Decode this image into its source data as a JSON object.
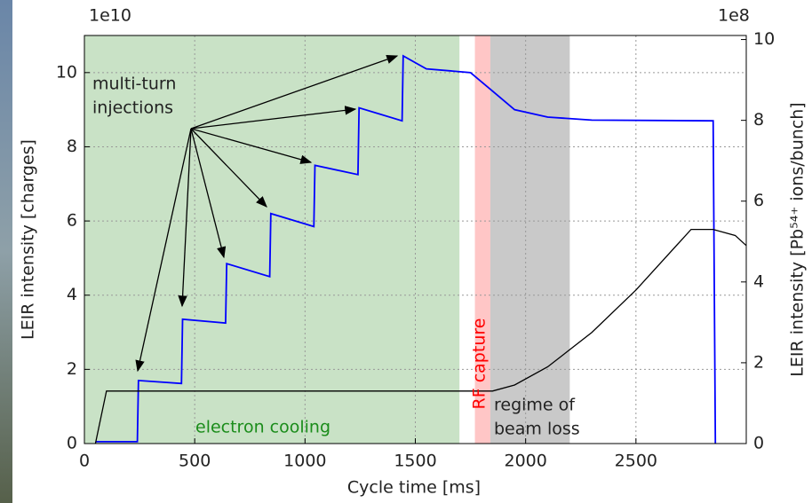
{
  "chart_data": {
    "type": "line",
    "x_label": "Cycle time [ms]",
    "y_label": "LEIR intensity [charges]",
    "y2_label": "LEIR intensity [Pb⁵⁴⁺ ions/bunch]",
    "y_offset": "1e10",
    "y2_offset": "1e8",
    "xlim": [
      0,
      3000
    ],
    "ylim": [
      0,
      11
    ],
    "y2lim": [
      0,
      10.1
    ],
    "xticks": [
      0,
      500,
      1000,
      1500,
      2000,
      2500
    ],
    "yticks": [
      0,
      2,
      4,
      6,
      8,
      10
    ],
    "y2ticks": [
      0,
      2,
      4,
      6,
      8,
      10
    ],
    "grid": true,
    "spans": [
      {
        "start": 0,
        "end": 1700,
        "color": "#c9e2c6"
      },
      {
        "start": 1770,
        "end": 1840,
        "color": "#ffc6c6"
      },
      {
        "start": 1840,
        "end": 2200,
        "color": "#c9c9c9"
      }
    ],
    "series": [
      {
        "color": "#0000ff",
        "x": [
          50,
          240,
          245,
          440,
          445,
          640,
          645,
          840,
          845,
          1040,
          1045,
          1240,
          1245,
          1440,
          1445,
          1550,
          1750,
          1850,
          1950,
          2100,
          2300,
          2850,
          2860
        ],
        "values": [
          0.05,
          0.05,
          1.7,
          1.62,
          3.35,
          3.25,
          4.85,
          4.5,
          6.2,
          5.85,
          7.5,
          7.25,
          9.05,
          8.7,
          10.45,
          10.1,
          10.0,
          9.5,
          9.0,
          8.8,
          8.72,
          8.7,
          0
        ]
      },
      {
        "color": "#000000",
        "axis": "y2",
        "x": [
          50,
          100,
          1850,
          1950,
          2100,
          2300,
          2500,
          2700,
          2750,
          2850,
          2950,
          3000
        ],
        "values": [
          0,
          1.3,
          1.3,
          1.45,
          1.9,
          2.75,
          3.8,
          5.0,
          5.3,
          5.3,
          5.15,
          4.9
        ]
      }
    ],
    "annotations": {
      "injections": [
        "multi-turn",
        "injections"
      ],
      "cooling": "electron cooling",
      "capture": "RF capture",
      "loss": [
        "regime of",
        "beam loss"
      ]
    }
  }
}
